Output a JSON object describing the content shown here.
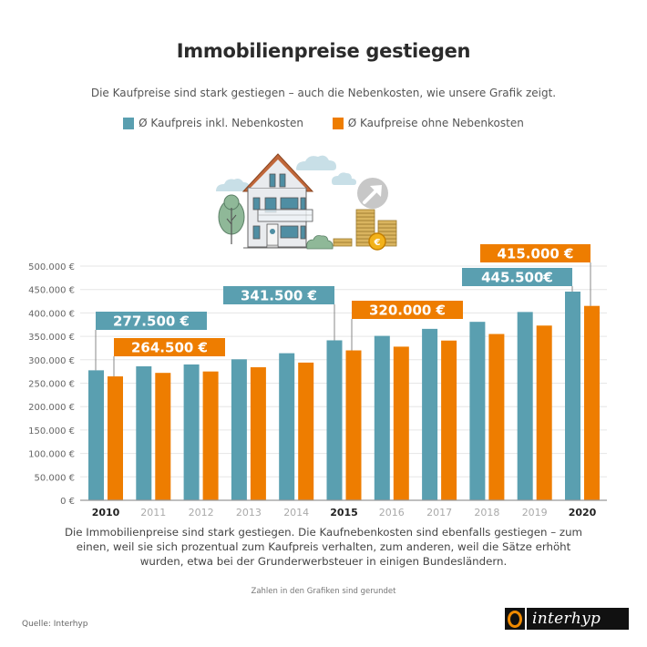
{
  "header": {
    "title": "Immobilienpreise gestiegen",
    "subtitle": "Die Kaufpreise sind stark gestiegen – auch die Nebenkosten, wie unsere Grafik zeigt."
  },
  "illustration": {
    "icons": [
      "house-icon",
      "tree-icon",
      "bush-icon",
      "cloud-icon",
      "coin-stack-icon",
      "euro-coin-icon",
      "arrow-up-right-icon"
    ]
  },
  "colors": {
    "teal": "#5a9fb0",
    "orange": "#ee7d00",
    "grid": "#e6e6e6",
    "axis": "#999999"
  },
  "chart_data": {
    "type": "bar",
    "title": "Immobilienpreise gestiegen",
    "xlabel": "",
    "ylabel": "",
    "ylim": [
      0,
      500000
    ],
    "yticks": [
      0,
      50000,
      100000,
      150000,
      200000,
      250000,
      300000,
      350000,
      400000,
      450000,
      500000
    ],
    "ytick_labels": [
      "0 €",
      "50.000 €",
      "100.000 €",
      "150.000 €",
      "200.000 €",
      "250.000 €",
      "300.000 €",
      "350.000 €",
      "400.000 €",
      "450.000 €",
      "500.000 €"
    ],
    "grid": true,
    "legend_position": "top-center",
    "categories": [
      "2010",
      "2011",
      "2012",
      "2013",
      "2014",
      "2015",
      "2016",
      "2017",
      "2018",
      "2019",
      "2020"
    ],
    "highlighted_categories": [
      "2010",
      "2015",
      "2020"
    ],
    "series": [
      {
        "name": "Ø Kaufpreis inkl. Nebenkosten",
        "color": "#5a9fb0",
        "values": [
          277500,
          286000,
          290000,
          301000,
          314000,
          341500,
          351000,
          366000,
          381000,
          402000,
          445500
        ]
      },
      {
        "name": "Ø Kaufpreise ohne Nebenkosten",
        "color": "#ee7d00",
        "values": [
          264500,
          272000,
          275000,
          284000,
          294000,
          320000,
          328000,
          341000,
          355000,
          373000,
          415000
        ]
      }
    ],
    "annotations": [
      {
        "category": "2010",
        "series": 0,
        "text": "277.500 €"
      },
      {
        "category": "2010",
        "series": 1,
        "text": "264.500 €"
      },
      {
        "category": "2015",
        "series": 0,
        "text": "341.500 €"
      },
      {
        "category": "2015",
        "series": 1,
        "text": "320.000 €"
      },
      {
        "category": "2020",
        "series": 0,
        "text": "445.500€"
      },
      {
        "category": "2020",
        "series": 1,
        "text": "415.000 €"
      }
    ]
  },
  "footer": {
    "body": "Die Immobilienpreise sind stark gestiegen. Die Kaufnebenkosten sind ebenfalls gestiegen – zum einen, weil sie sich prozentual zum Kaufpreis verhalten, zum anderen, weil die Sätze erhöht wurden, etwa bei der Grunderwerbsteuer in einigen Bundesländern.",
    "note": "Zahlen in den Grafiken sind gerundet",
    "source": "Quelle: Interhyp",
    "logo_text": "interhyp"
  }
}
